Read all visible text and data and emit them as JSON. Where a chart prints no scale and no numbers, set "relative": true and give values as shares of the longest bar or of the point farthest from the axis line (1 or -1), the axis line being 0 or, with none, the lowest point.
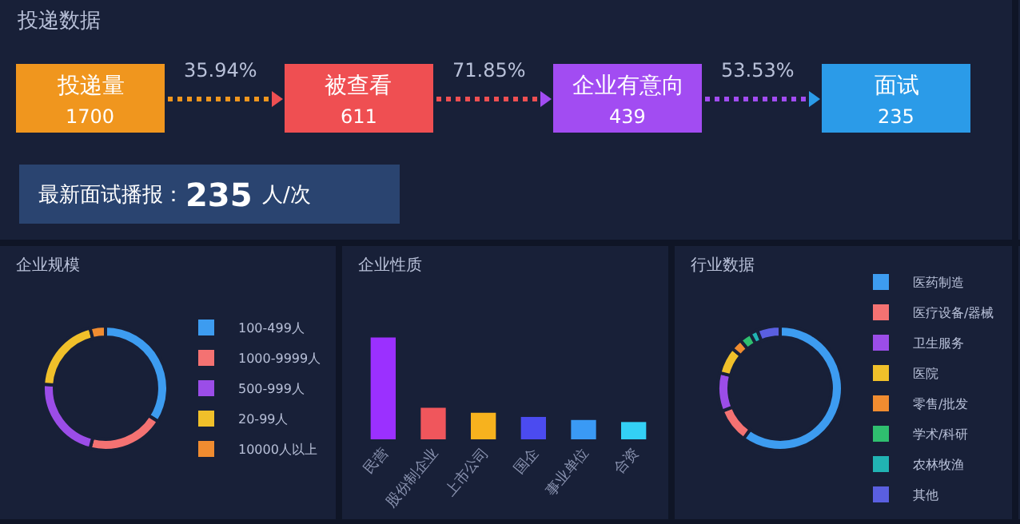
{
  "chart_data": [
    {
      "type": "other",
      "title": "投递数据",
      "categories": [
        "投递量",
        "被查看",
        "企业有意向",
        "面试"
      ],
      "values": [
        1700,
        611,
        439,
        235
      ],
      "colors": [
        "#f0961e",
        "#ef4f52",
        "#a24cf2",
        "#2b9be8"
      ],
      "data_labels": true,
      "annotations": [
        "35.94%",
        "71.85%",
        "53.53%",
        "最新面试播报：",
        "235",
        "人/次"
      ]
    },
    {
      "type": "donut",
      "title": "企业规模",
      "categories": [
        "100-499人",
        "1000-9999人",
        "500-999人",
        "20-99人",
        "10000人以上"
      ],
      "values": [
        34,
        20,
        22,
        20,
        4
      ],
      "colors": [
        "#3d9cf0",
        "#f47272",
        "#9b4de8",
        "#f0c02a",
        "#f08c30"
      ],
      "legend": "right"
    },
    {
      "type": "bar",
      "title": "企业性质",
      "relative": true,
      "categories": [
        "民营",
        "股份制企业",
        "上市公司",
        "国企",
        "事业单位",
        "合资"
      ],
      "values": [
        1,
        0.31,
        0.26,
        0.22,
        0.19,
        0.17
      ],
      "colors": [
        "#9b30ff",
        "#f0565c",
        "#f7b21e",
        "#4b4bf0",
        "#3a9af5",
        "#33d0f5"
      ]
    },
    {
      "type": "donut",
      "title": "行业数据",
      "categories": [
        "医药制造",
        "医疗设备/器械",
        "卫生服务",
        "医院",
        "零售/批发",
        "学术/科研",
        "农林牧渔",
        "其他"
      ],
      "values": [
        60,
        9,
        10,
        7,
        3,
        3,
        2,
        6
      ],
      "colors": [
        "#3d9cf0",
        "#f47272",
        "#9b4de8",
        "#f0c02a",
        "#f08c30",
        "#2fbf6f",
        "#21b3b3",
        "#5a5fe0"
      ],
      "legend": "right"
    }
  ]
}
